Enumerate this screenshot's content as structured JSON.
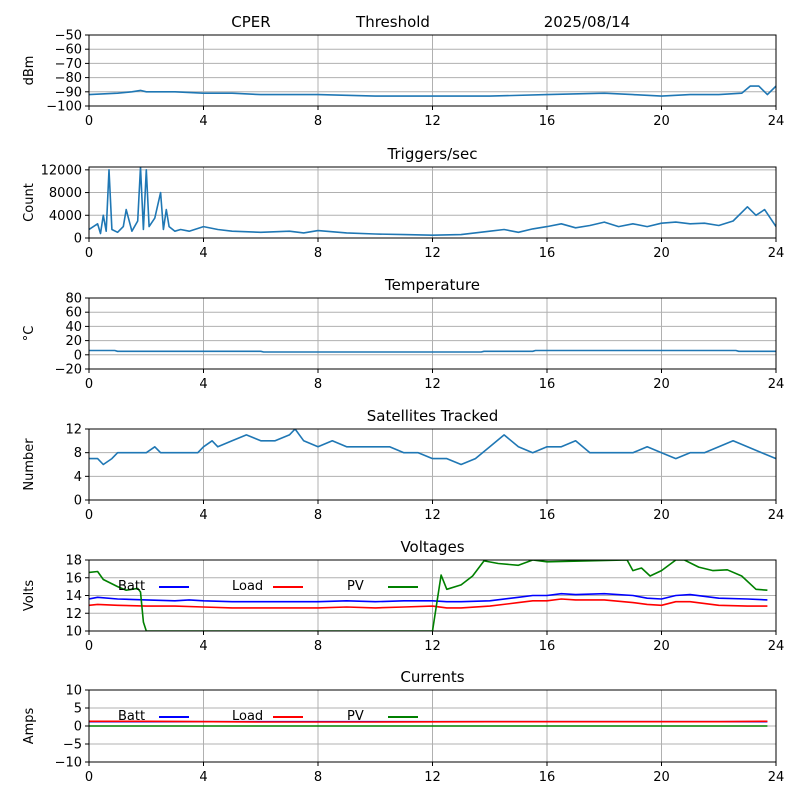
{
  "header": {
    "site": "CPER",
    "mode": "Threshold",
    "date": "2025/08/14"
  },
  "colors": {
    "series": "#1f77b4",
    "batt": "#0000ff",
    "load": "#ff0000",
    "pv": "#008000",
    "grid": "#b0b0b0"
  },
  "chart_data": [
    {
      "id": "threshold",
      "type": "line",
      "title": "",
      "xlabel": "",
      "ylabel": "dBm",
      "xlim": [
        0,
        24
      ],
      "ylim": [
        -100,
        -50
      ],
      "grid": true,
      "xticks": [
        0,
        4,
        8,
        12,
        16,
        20,
        24
      ],
      "yticks": [
        -100,
        -90,
        -80,
        -70,
        -60,
        -50
      ],
      "series": [
        {
          "color": "#1f77b4",
          "x": [
            0,
            1,
            1.5,
            1.8,
            2,
            2.5,
            3,
            4,
            5,
            6,
            8,
            10,
            12,
            14,
            16,
            18,
            19,
            20,
            21,
            22,
            22.8,
            23.1,
            23.4,
            23.7,
            24
          ],
          "y": [
            -92,
            -91,
            -90,
            -89,
            -90,
            -90,
            -90,
            -91,
            -91,
            -92,
            -92,
            -93,
            -93,
            -93,
            -92,
            -91,
            -92,
            -93,
            -92,
            -92,
            -91,
            -86,
            -86,
            -92,
            -86
          ]
        }
      ]
    },
    {
      "id": "triggers",
      "type": "line",
      "title": "Triggers/sec",
      "xlabel": "",
      "ylabel": "Count",
      "xlim": [
        0,
        24
      ],
      "ylim": [
        0,
        12500
      ],
      "grid": true,
      "xticks": [
        0,
        4,
        8,
        12,
        16,
        20,
        24
      ],
      "yticks": [
        0,
        4000,
        8000,
        12000
      ],
      "series": [
        {
          "color": "#1f77b4",
          "x": [
            0,
            0.3,
            0.4,
            0.5,
            0.6,
            0.7,
            0.8,
            1,
            1.2,
            1.3,
            1.5,
            1.7,
            1.8,
            1.9,
            2,
            2.1,
            2.3,
            2.5,
            2.6,
            2.7,
            2.8,
            3,
            3.2,
            3.5,
            4,
            4.5,
            5,
            6,
            7,
            7.5,
            8,
            9,
            10,
            11,
            12,
            13,
            14,
            14.5,
            15,
            15.5,
            16,
            16.5,
            17,
            17.5,
            18,
            18.5,
            19,
            19.5,
            20,
            20.5,
            21,
            21.5,
            22,
            22.5,
            23,
            23.3,
            23.6,
            24
          ],
          "y": [
            1500,
            2500,
            800,
            4000,
            1200,
            12000,
            1500,
            1000,
            2000,
            5000,
            1200,
            3000,
            12500,
            1500,
            12000,
            2000,
            3500,
            8000,
            1500,
            5000,
            2000,
            1200,
            1500,
            1200,
            2000,
            1500,
            1200,
            1000,
            1200,
            900,
            1300,
            900,
            700,
            600,
            500,
            600,
            1200,
            1500,
            1000,
            1600,
            2000,
            2500,
            1800,
            2200,
            2800,
            2000,
            2500,
            2000,
            2600,
            2800,
            2500,
            2600,
            2200,
            3000,
            5500,
            4000,
            5000,
            2000
          ]
        }
      ]
    },
    {
      "id": "temperature",
      "type": "line",
      "title": "Temperature",
      "xlabel": "",
      "ylabel": "°C",
      "xlim": [
        0,
        24
      ],
      "ylim": [
        -20,
        80
      ],
      "grid": true,
      "xticks": [
        0,
        4,
        8,
        12,
        16,
        20,
        24
      ],
      "yticks": [
        -20,
        0,
        20,
        40,
        60,
        80
      ],
      "series": [
        {
          "color": "#1f77b4",
          "x": [
            0,
            0.9,
            1,
            6,
            6.1,
            12,
            13.7,
            13.8,
            15.5,
            15.6,
            22.6,
            22.7,
            24
          ],
          "y": [
            6,
            6,
            5,
            5,
            4,
            4,
            4,
            5,
            5,
            6,
            6,
            5,
            5
          ]
        }
      ]
    },
    {
      "id": "satellites",
      "type": "line",
      "title": "Satellites Tracked",
      "xlabel": "",
      "ylabel": "Number",
      "xlim": [
        0,
        24
      ],
      "ylim": [
        0,
        12
      ],
      "grid": true,
      "xticks": [
        0,
        4,
        8,
        12,
        16,
        20,
        24
      ],
      "yticks": [
        0,
        4,
        8,
        12
      ],
      "series": [
        {
          "color": "#1f77b4",
          "x": [
            0,
            0.3,
            0.5,
            0.8,
            1,
            1.5,
            2,
            2.3,
            2.5,
            3,
            3.8,
            4,
            4.3,
            4.5,
            5,
            5.5,
            6,
            6.5,
            7,
            7.2,
            7.5,
            8,
            8.5,
            9,
            9.5,
            10,
            10.5,
            11,
            11.5,
            12,
            12.5,
            13,
            13.5,
            14,
            14.5,
            15,
            15.5,
            16,
            16.5,
            17,
            17.5,
            18,
            18.5,
            19,
            19.5,
            20,
            20.5,
            21,
            21.5,
            22,
            22.5,
            23,
            23.5,
            24
          ],
          "y": [
            7,
            7,
            6,
            7,
            8,
            8,
            8,
            9,
            8,
            8,
            8,
            9,
            10,
            9,
            10,
            11,
            10,
            10,
            11,
            12,
            10,
            9,
            10,
            9,
            9,
            9,
            9,
            8,
            8,
            7,
            7,
            6,
            7,
            9,
            11,
            9,
            8,
            9,
            9,
            10,
            8,
            8,
            8,
            8,
            9,
            8,
            7,
            8,
            8,
            9,
            10,
            9,
            8,
            7
          ]
        }
      ]
    },
    {
      "id": "voltages",
      "type": "line",
      "title": "Voltages",
      "xlabel": "",
      "ylabel": "Volts",
      "xlim": [
        0,
        24
      ],
      "ylim": [
        10,
        18
      ],
      "grid": true,
      "xticks": [
        0,
        4,
        8,
        12,
        16,
        20,
        24
      ],
      "yticks": [
        10,
        12,
        14,
        16,
        18
      ],
      "legend": [
        "Batt",
        "Load",
        "PV"
      ],
      "legend_placement": "top-left",
      "series": [
        {
          "name": "Batt",
          "color": "#0000ff",
          "x": [
            0,
            0.3,
            1,
            2,
            3,
            3.5,
            4,
            5,
            6,
            7,
            8,
            9,
            10,
            11,
            12,
            12.5,
            13,
            14,
            15,
            15.5,
            16,
            16.5,
            17,
            18,
            19,
            19.5,
            20,
            20.5,
            21,
            22,
            23,
            23.7
          ],
          "y": [
            13.6,
            13.8,
            13.6,
            13.5,
            13.4,
            13.5,
            13.4,
            13.3,
            13.3,
            13.3,
            13.3,
            13.4,
            13.3,
            13.4,
            13.4,
            13.3,
            13.3,
            13.4,
            13.8,
            14.0,
            14.0,
            14.2,
            14.1,
            14.2,
            14.0,
            13.7,
            13.6,
            14.0,
            14.1,
            13.7,
            13.6,
            13.5
          ]
        },
        {
          "name": "Load",
          "color": "#ff0000",
          "x": [
            0,
            0.3,
            1,
            2,
            3,
            4,
            5,
            6,
            7,
            8,
            9,
            10,
            11,
            12,
            12.5,
            13,
            14,
            15,
            15.5,
            16,
            16.5,
            17,
            18,
            19,
            19.5,
            20,
            20.5,
            21,
            22,
            23,
            23.7
          ],
          "y": [
            12.9,
            13.0,
            12.9,
            12.8,
            12.8,
            12.7,
            12.6,
            12.6,
            12.6,
            12.6,
            12.7,
            12.6,
            12.7,
            12.8,
            12.6,
            12.6,
            12.8,
            13.2,
            13.4,
            13.4,
            13.6,
            13.5,
            13.5,
            13.2,
            13.0,
            12.9,
            13.3,
            13.3,
            12.9,
            12.8,
            12.8
          ]
        },
        {
          "name": "PV",
          "color": "#008000",
          "x": [
            0,
            0.3,
            0.5,
            1,
            1.3,
            1.7,
            1.8,
            1.9,
            2.0,
            11.9,
            12.0,
            12.3,
            12.5,
            13.0,
            13.4,
            13.8,
            14.3,
            15.0,
            15.5,
            16,
            18.8,
            19.0,
            19.3,
            19.6,
            20,
            20.5,
            20.7,
            20.8,
            21.3,
            21.8,
            22.3,
            22.8,
            23.3,
            23.7
          ],
          "y": [
            16.6,
            16.7,
            15.8,
            15.0,
            14.6,
            14.8,
            14.4,
            11.0,
            10.0,
            10.0,
            10.0,
            16.3,
            14.7,
            15.2,
            16.2,
            17.9,
            17.6,
            17.4,
            18.0,
            17.8,
            18.0,
            16.8,
            17.1,
            16.2,
            16.8,
            18.0,
            18.0,
            18.0,
            17.2,
            16.8,
            16.9,
            16.2,
            14.7,
            14.6
          ]
        }
      ]
    },
    {
      "id": "currents",
      "type": "line",
      "title": "Currents",
      "xlabel": "",
      "ylabel": "Amps",
      "xlim": [
        0,
        24
      ],
      "ylim": [
        -10,
        10
      ],
      "grid": true,
      "xticks": [
        0,
        4,
        8,
        12,
        16,
        20,
        24
      ],
      "yticks": [
        -10,
        -5,
        0,
        5,
        10
      ],
      "legend": [
        "Batt",
        "Load",
        "PV"
      ],
      "legend_placement": "top-left",
      "series": [
        {
          "name": "Batt",
          "color": "#0000ff",
          "x": [
            0,
            23.7
          ],
          "y": [
            1.2,
            1.2
          ]
        },
        {
          "name": "Load",
          "color": "#ff0000",
          "x": [
            0,
            2,
            6,
            10,
            14,
            18,
            22,
            23.7
          ],
          "y": [
            1.3,
            1.3,
            1.1,
            1.1,
            1.2,
            1.2,
            1.2,
            1.3
          ]
        },
        {
          "name": "PV",
          "color": "#008000",
          "x": [
            0,
            23.7
          ],
          "y": [
            0,
            0
          ]
        }
      ]
    }
  ]
}
